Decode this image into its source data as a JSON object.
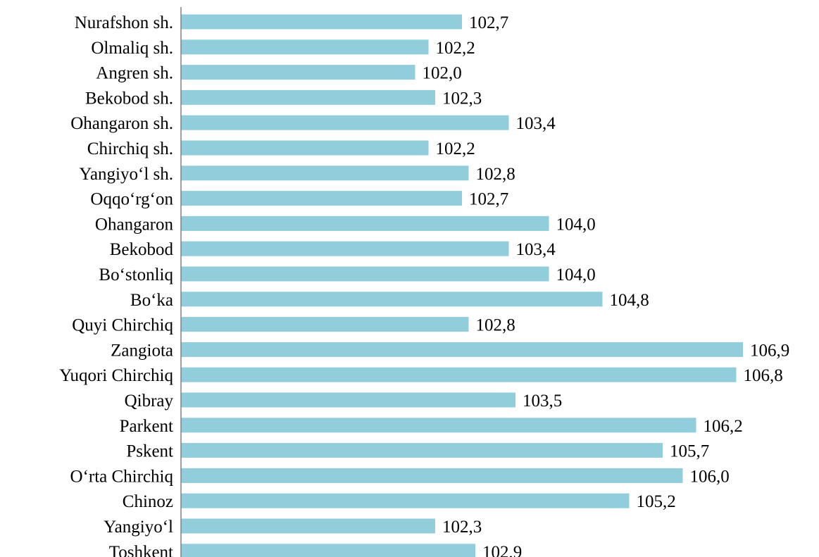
{
  "chart_data": {
    "type": "bar",
    "orientation": "horizontal",
    "categories": [
      "Nurafshon sh.",
      "Olmaliq sh.",
      "Angren sh.",
      "Bekobod sh.",
      "Ohangaron sh.",
      "Chirchiq sh.",
      "Yangiyo‘l sh.",
      "Oqqo‘rg‘on",
      "Ohangaron",
      "Bekobod",
      "Bo‘stonliq",
      "Bo‘ka",
      "Quyi Chirchiq",
      "Zangiota",
      "Yuqori Chirchiq",
      "Qibray",
      "Parkent",
      "Pskent",
      "O‘rta Chirchiq",
      "Chinoz",
      "Yangiyo‘l",
      "Toshkent"
    ],
    "values": [
      102.7,
      102.2,
      102.0,
      102.3,
      103.4,
      102.2,
      102.8,
      102.7,
      104.0,
      103.4,
      104.0,
      104.8,
      102.8,
      106.9,
      106.8,
      103.5,
      106.2,
      105.7,
      106.0,
      105.2,
      102.3,
      102.9
    ],
    "value_labels": [
      "102,7",
      "102,2",
      "102,0",
      "102,3",
      "103,4",
      "102,2",
      "102,8",
      "102,7",
      "104,0",
      "103,4",
      "104,0",
      "104,8",
      "102,8",
      "106,9",
      "106,8",
      "103,5",
      "106,2",
      "105,7",
      "106,0",
      "105,2",
      "102,3",
      "102,9"
    ],
    "title": "",
    "xlabel": "",
    "ylabel": "",
    "xlim": [
      98.5,
      107
    ],
    "grid": false,
    "legend": "none",
    "bar_color": "#92CDDC",
    "axis_color": "#808080"
  }
}
